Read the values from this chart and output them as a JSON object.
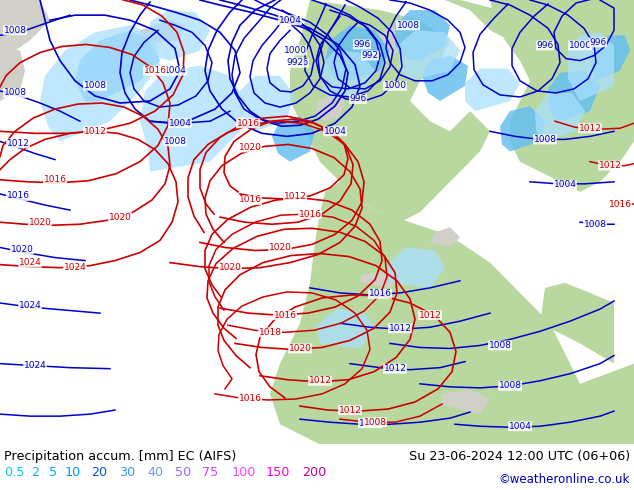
{
  "title_left": "Precipitation accum. [mm] EC (AIFS)",
  "title_right": "Su 23-06-2024 12:00 UTC (06+06)",
  "credit": "©weatheronline.co.uk",
  "legend_values": [
    "0.5",
    "2",
    "5",
    "10",
    "20",
    "30",
    "40",
    "50",
    "75",
    "100",
    "150",
    "200"
  ],
  "legend_colors": [
    "#00ccff",
    "#00bbff",
    "#00aaff",
    "#0099ff",
    "#0055dd",
    "#3399ff",
    "#6699ff",
    "#9966ff",
    "#cc44ff",
    "#ff44ff",
    "#ff00cc",
    "#cc0099"
  ],
  "bg_color": "#ffffff",
  "map_bg_gray": "#d0cfc8",
  "map_sea_white": "#e8e8e8",
  "map_land_green": "#b8d8a0",
  "map_precip_light": "#aadfff",
  "map_precip_mid": "#66c0f0",
  "map_precip_dark": "#3399dd",
  "title_color": "#000000",
  "credit_color": "#0000bb",
  "bottom_bar_color": "#ffffff",
  "isobar_blue": "#0000cc",
  "isobar_red": "#cc0000",
  "figsize": [
    6.34,
    4.9
  ],
  "dpi": 100
}
